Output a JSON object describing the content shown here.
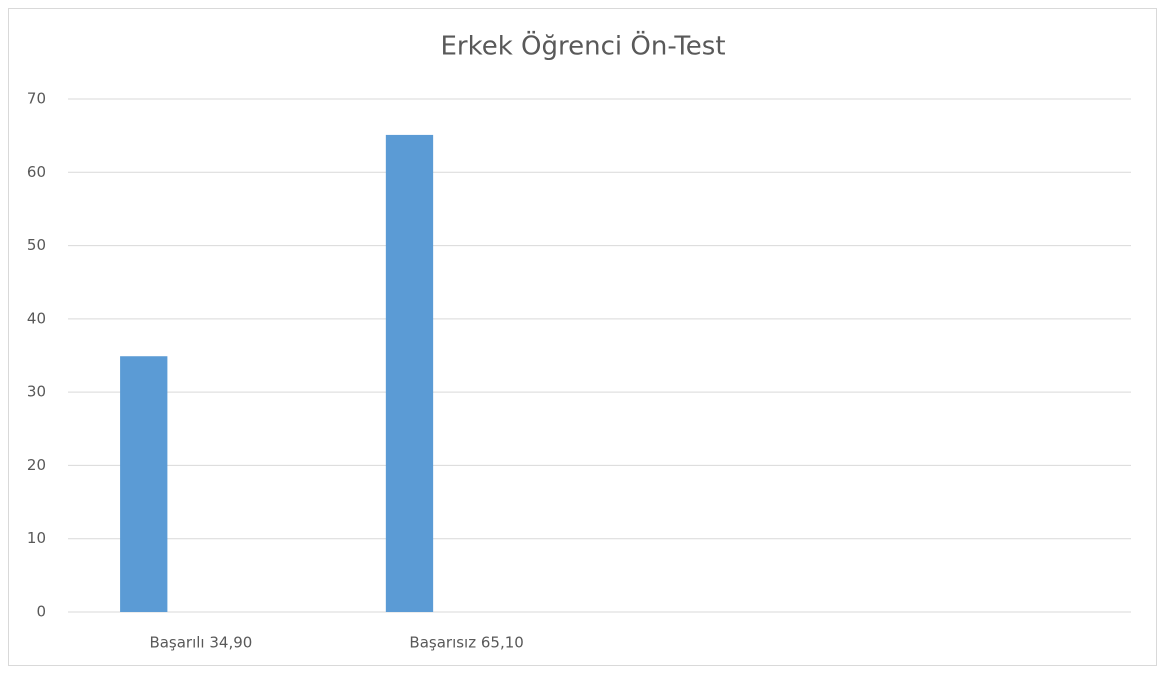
{
  "chart_data": {
    "type": "bar",
    "title": "Erkek Öğrenci Ön-Test",
    "categories": [
      "Başarılı 34,90",
      "Başarısız 65,10",
      null,
      null
    ],
    "values": [
      34.9,
      65.1,
      null,
      null
    ],
    "color": "#5b9bd5",
    "ylim": [
      0,
      70
    ],
    "yticks": [
      0,
      10,
      20,
      30,
      40,
      50,
      60,
      70
    ],
    "grid": true
  }
}
